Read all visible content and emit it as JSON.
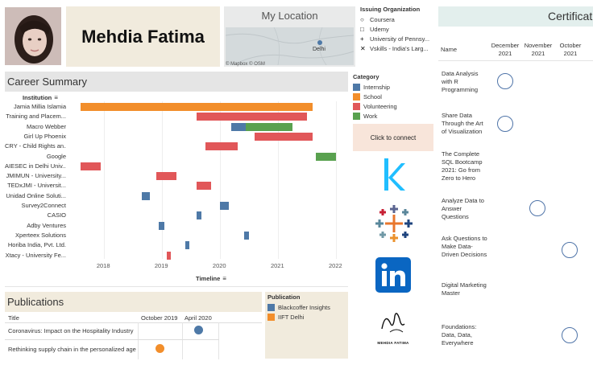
{
  "profile": {
    "name": "Mehdia Fatima"
  },
  "map": {
    "title": "My Location",
    "credit": "© Mapbox  © OSM",
    "city": "Delhi"
  },
  "issuing": {
    "title": "Issuing Organization",
    "items": [
      {
        "marker": "○",
        "label": "Coursera"
      },
      {
        "marker": "□",
        "label": "Udemy"
      },
      {
        "marker": "+",
        "label": "University of Pennsy..."
      },
      {
        "marker": "✕",
        "label": "Vskills - India's Larg..."
      }
    ]
  },
  "certifications": {
    "title": "Certifications",
    "name_header": "Name",
    "columns": [
      {
        "month": "December",
        "year": "2021"
      },
      {
        "month": "November",
        "year": "2021"
      },
      {
        "month": "October",
        "year": "2021"
      }
    ],
    "items": [
      {
        "name": "Data Analysis with R Programming"
      },
      {
        "name": "Share Data Through the Art of Visualization"
      },
      {
        "name": "The Complete SQL Bootcamp 2021: Go from Zero to Hero"
      },
      {
        "name": "Analyze Data to Answer Questions"
      },
      {
        "name": "Ask Questions to Make Data-Driven Decisions"
      },
      {
        "name": "Digital Marketing Master"
      },
      {
        "name": "Foundations: Data, Data, Everywhere"
      }
    ]
  },
  "career": {
    "title": "Career Summary",
    "institution_header": "Institution",
    "timeline_label": "Timeline",
    "ticks": [
      "2018",
      "2019",
      "2020",
      "2021",
      "2022"
    ],
    "institutions": [
      {
        "label": "Jamia Millia Islamia",
        "category": "School",
        "start": 2017.6,
        "end": 2021.6
      },
      {
        "label": "Training and Placem...",
        "category": "Volunteering",
        "start": 2019.6,
        "end": 2021.5
      },
      {
        "label": "Macro Webber",
        "category": "Internship",
        "start": 2020.2,
        "end": 2020.45
      },
      {
        "label": "Macro Webber",
        "category": "Work",
        "start": 2020.45,
        "end": 2021.25
      },
      {
        "label": "Girl Up Phoenix",
        "category": "Volunteering",
        "start": 2020.6,
        "end": 2021.6
      },
      {
        "label": "CRY - Child Rights an...",
        "category": "Volunteering",
        "start": 2019.75,
        "end": 2020.3
      },
      {
        "label": "Google",
        "category": "Work",
        "start": 2021.65,
        "end": 2022.0
      },
      {
        "label": "AIESEC in Delhi Univ...",
        "category": "Volunteering",
        "start": 2017.6,
        "end": 2017.95
      },
      {
        "label": "JMIMUN - University...",
        "category": "Volunteering",
        "start": 2018.9,
        "end": 2019.25
      },
      {
        "label": "TEDxJMI - Universit...",
        "category": "Volunteering",
        "start": 2019.6,
        "end": 2019.85
      },
      {
        "label": "Unidad Online Soluti...",
        "category": "Internship",
        "start": 2018.65,
        "end": 2018.8
      },
      {
        "label": "Survey2Connect",
        "category": "Internship",
        "start": 2020.0,
        "end": 2020.15
      },
      {
        "label": "CASIO",
        "category": "Internship",
        "start": 2019.6,
        "end": 2019.68
      },
      {
        "label": "Adby Ventures",
        "category": "Internship",
        "start": 2018.95,
        "end": 2019.05
      },
      {
        "label": "Xperteex Solutions",
        "category": "Internship",
        "start": 2020.42,
        "end": 2020.5
      },
      {
        "label": "Horiba India, Pvt. Ltd.",
        "category": "Internship",
        "start": 2019.4,
        "end": 2019.48
      },
      {
        "label": "Xtacy - University Fe...",
        "category": "Volunteering",
        "start": 2019.08,
        "end": 2019.16
      }
    ]
  },
  "category_legend": {
    "title": "Category",
    "items": [
      {
        "label": "Internship",
        "color": "#4e79a7"
      },
      {
        "label": "School",
        "color": "#f28e2b"
      },
      {
        "label": "Volunteering",
        "color": "#e15759"
      },
      {
        "label": "Work",
        "color": "#59a14f"
      }
    ]
  },
  "connect": {
    "label": "Click to connect",
    "signature": "MEHDIA FATIMA"
  },
  "publications": {
    "title": "Publications",
    "title_header": "Title",
    "columns": [
      "October 2019",
      "April 2020"
    ],
    "items": [
      {
        "title": "Coronavirus: Impact on the Hospitality Industry",
        "publisher": "Blackcoffer Insights"
      },
      {
        "title": "Rethinking supply chain in the personalized age",
        "publisher": "IIFT Delhi"
      }
    ],
    "legend_title": "Publication",
    "legend": [
      {
        "label": "Blackcoffer Insights",
        "color": "#4e79a7"
      },
      {
        "label": "IIFT Delhi",
        "color": "#f28e2b"
      }
    ]
  }
}
